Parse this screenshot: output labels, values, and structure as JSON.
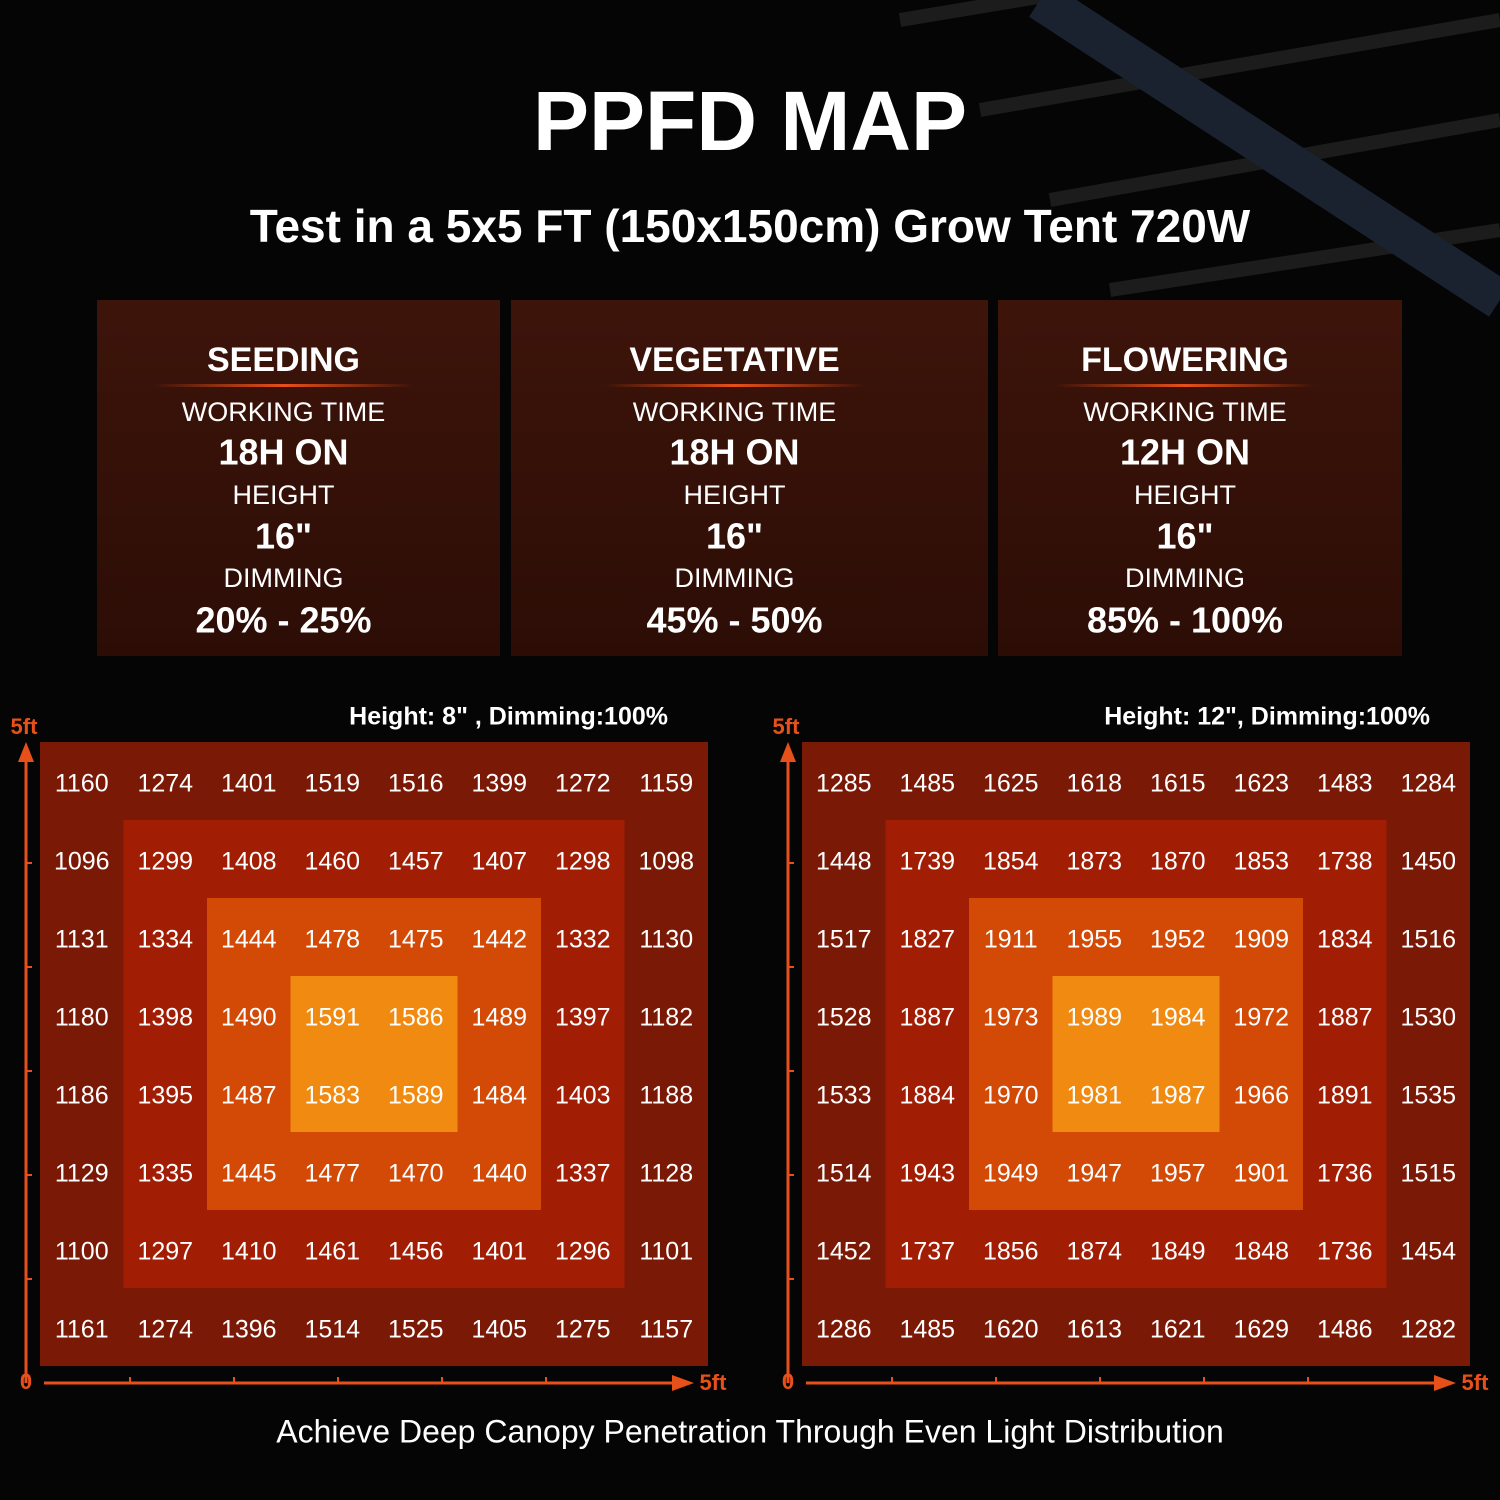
{
  "title": "PPFD MAP",
  "subtitle": "Test in a 5x5 FT (150x150cm) Grow Tent 720W",
  "stages": [
    {
      "name": "SEEDING",
      "time_label": "WORKING TIME",
      "time": "18H ON",
      "height_label": "HEIGHT",
      "height": "16\"",
      "dimming_label": "DIMMING",
      "dimming": "20% - 25%"
    },
    {
      "name": "VEGETATIVE",
      "time_label": "WORKING TIME",
      "time": "18H ON",
      "height_label": "HEIGHT",
      "height": "16\"",
      "dimming_label": "DIMMING",
      "dimming": "45% - 50%"
    },
    {
      "name": "FLOWERING",
      "time_label": "WORKING TIME",
      "time": "12H ON",
      "height_label": "HEIGHT",
      "height": "16\"",
      "dimming_label": "DIMMING",
      "dimming": "85% - 100%"
    }
  ],
  "maps": [
    {
      "caption": "Height: 8\" , Dimming:100%",
      "axis_top": "5ft",
      "axis_origin": "0",
      "axis_right": "5ft",
      "rows": [
        [
          1160,
          1274,
          1401,
          1519,
          1516,
          1399,
          1272,
          1159
        ],
        [
          1096,
          1299,
          1408,
          1460,
          1457,
          1407,
          1298,
          1098
        ],
        [
          1131,
          1334,
          1444,
          1478,
          1475,
          1442,
          1332,
          1130
        ],
        [
          1180,
          1398,
          1490,
          1591,
          1586,
          1489,
          1397,
          1182
        ],
        [
          1186,
          1395,
          1487,
          1583,
          1589,
          1484,
          1403,
          1188
        ],
        [
          1129,
          1335,
          1445,
          1477,
          1470,
          1440,
          1337,
          1128
        ],
        [
          1100,
          1297,
          1410,
          1461,
          1456,
          1401,
          1296,
          1101
        ],
        [
          1161,
          1274,
          1396,
          1514,
          1525,
          1405,
          1275,
          1157
        ]
      ]
    },
    {
      "caption": "Height: 12\", Dimming:100%",
      "axis_top": "5ft",
      "axis_origin": "0",
      "axis_right": "5ft",
      "rows": [
        [
          1285,
          1485,
          1625,
          1618,
          1615,
          1623,
          1483,
          1284
        ],
        [
          1448,
          1739,
          1854,
          1873,
          1870,
          1853,
          1738,
          1450
        ],
        [
          1517,
          1827,
          1911,
          1955,
          1952,
          1909,
          1834,
          1516
        ],
        [
          1528,
          1887,
          1973,
          1989,
          1984,
          1972,
          1887,
          1530
        ],
        [
          1533,
          1884,
          1970,
          1981,
          1987,
          1966,
          1891,
          1535
        ],
        [
          1514,
          1943,
          1949,
          1947,
          1957,
          1901,
          1736,
          1515
        ],
        [
          1452,
          1737,
          1856,
          1874,
          1849,
          1848,
          1736,
          1454
        ],
        [
          1286,
          1485,
          1620,
          1613,
          1621,
          1629,
          1486,
          1282
        ]
      ]
    }
  ],
  "footer": "Achieve Deep Canopy Penetration Through Even Light Distribution"
}
